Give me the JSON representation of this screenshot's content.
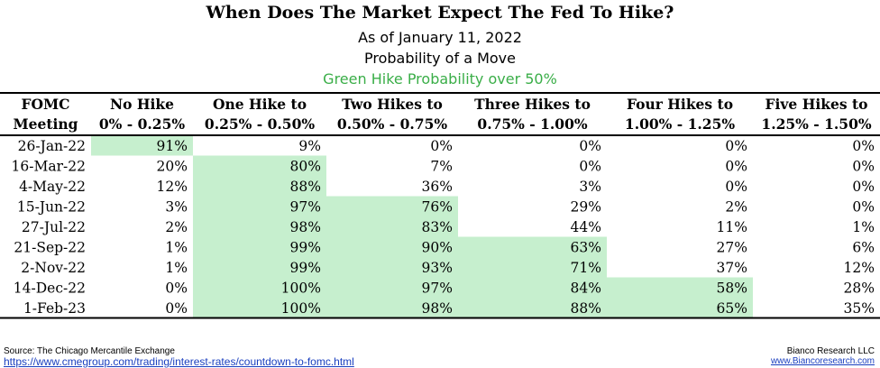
{
  "chart_data": {
    "type": "table",
    "title": "When Does The Market Expect The Fed To Hike?",
    "subtitle": "As of January 11, 2022",
    "subtitle2": "Probability of a Move",
    "note": "Green Hike Probability over 50%",
    "highlight_color": "#c6efce",
    "note_color": "#3aae48",
    "columns": [
      {
        "line1": "FOMC",
        "line2": "Meeting"
      },
      {
        "line1": "No Hike",
        "line2": "0% - 0.25%"
      },
      {
        "line1": "One Hike to",
        "line2": "0.25% - 0.50%"
      },
      {
        "line1": "Two Hikes to",
        "line2": "0.50% - 0.75%"
      },
      {
        "line1": "Three Hikes to",
        "line2": "0.75% - 1.00%"
      },
      {
        "line1": "Four Hikes to",
        "line2": "1.00% - 1.25%"
      },
      {
        "line1": "Five Hikes to",
        "line2": "1.25% - 1.50%"
      }
    ],
    "rows": [
      {
        "date": "26-Jan-22",
        "values": [
          "91%",
          "9%",
          "0%",
          "0%",
          "0%",
          "0%"
        ],
        "highlight": [
          true,
          false,
          false,
          false,
          false,
          false
        ]
      },
      {
        "date": "16-Mar-22",
        "values": [
          "20%",
          "80%",
          "7%",
          "0%",
          "0%",
          "0%"
        ],
        "highlight": [
          false,
          true,
          false,
          false,
          false,
          false
        ]
      },
      {
        "date": "4-May-22",
        "values": [
          "12%",
          "88%",
          "36%",
          "3%",
          "0%",
          "0%"
        ],
        "highlight": [
          false,
          true,
          false,
          false,
          false,
          false
        ]
      },
      {
        "date": "15-Jun-22",
        "values": [
          "3%",
          "97%",
          "76%",
          "29%",
          "2%",
          "0%"
        ],
        "highlight": [
          false,
          true,
          true,
          false,
          false,
          false
        ]
      },
      {
        "date": "27-Jul-22",
        "values": [
          "2%",
          "98%",
          "83%",
          "44%",
          "11%",
          "1%"
        ],
        "highlight": [
          false,
          true,
          true,
          false,
          false,
          false
        ]
      },
      {
        "date": "21-Sep-22",
        "values": [
          "1%",
          "99%",
          "90%",
          "63%",
          "27%",
          "6%"
        ],
        "highlight": [
          false,
          true,
          true,
          true,
          false,
          false
        ]
      },
      {
        "date": "2-Nov-22",
        "values": [
          "1%",
          "99%",
          "93%",
          "71%",
          "37%",
          "12%"
        ],
        "highlight": [
          false,
          true,
          true,
          true,
          false,
          false
        ]
      },
      {
        "date": "14-Dec-22",
        "values": [
          "0%",
          "100%",
          "97%",
          "84%",
          "58%",
          "28%"
        ],
        "highlight": [
          false,
          true,
          true,
          true,
          true,
          false
        ]
      },
      {
        "date": "1-Feb-23",
        "values": [
          "0%",
          "100%",
          "98%",
          "88%",
          "65%",
          "35%"
        ],
        "highlight": [
          false,
          true,
          true,
          true,
          true,
          false
        ]
      }
    ]
  },
  "footer": {
    "source": "Source: The Chicago Mercantile Exchange",
    "attribution": "Bianco Research LLC",
    "url": "https://www.cmegroup.com/trading/interest-rates/countdown-to-fomc.html",
    "site": "www.Biancoresearch.com"
  }
}
